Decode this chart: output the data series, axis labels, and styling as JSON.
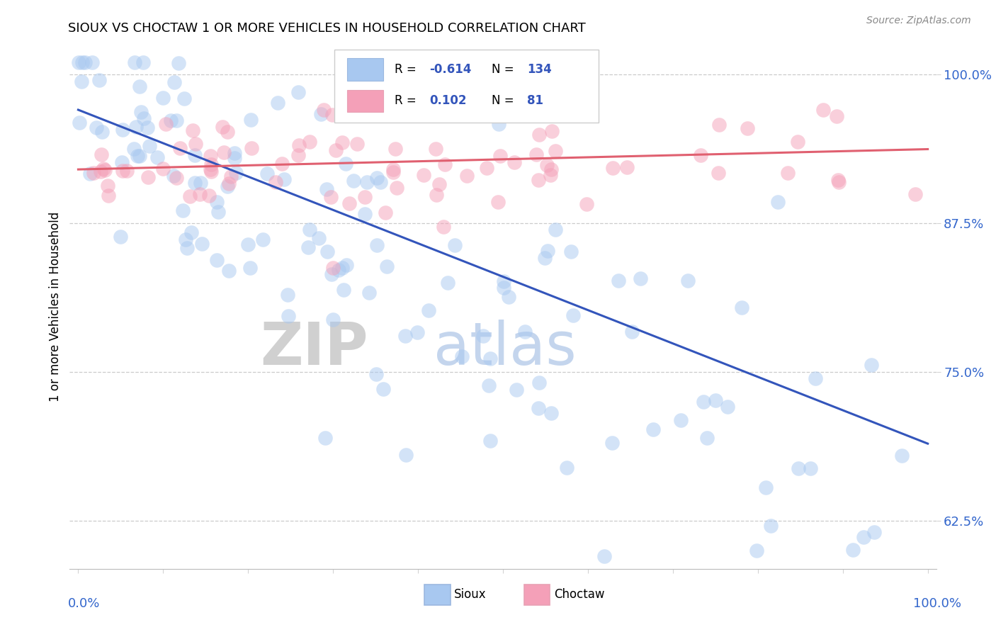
{
  "title": "SIOUX VS CHOCTAW 1 OR MORE VEHICLES IN HOUSEHOLD CORRELATION CHART",
  "source_text": "Source: ZipAtlas.com",
  "ylabel": "1 or more Vehicles in Household",
  "yticks": [
    "62.5%",
    "75.0%",
    "87.5%",
    "100.0%"
  ],
  "ytick_vals": [
    0.625,
    0.75,
    0.875,
    1.0
  ],
  "sioux_color": "#a8c8f0",
  "choctaw_color": "#f4a0b8",
  "sioux_line_color": "#3355bb",
  "choctaw_line_color": "#e06070",
  "sioux_R": "-0.614",
  "sioux_N": "134",
  "choctaw_R": "0.102",
  "choctaw_N": "81",
  "legend_text_color": "#3355bb",
  "ytick_color": "#3366cc",
  "xlabel_color": "#3366cc"
}
